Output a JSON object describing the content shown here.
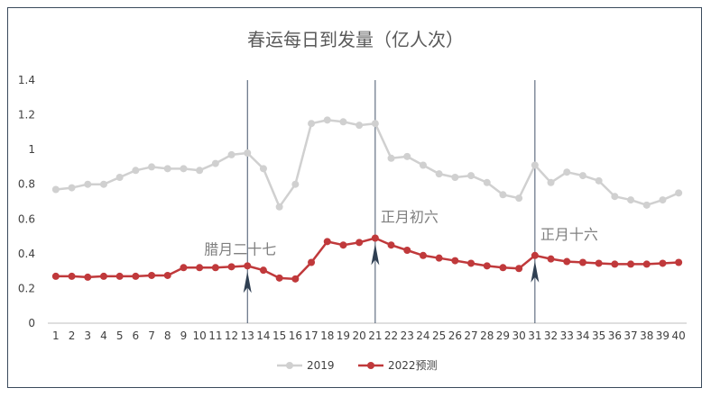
{
  "chart_data": {
    "type": "line",
    "title": "春运每日到发量（亿人次）",
    "xlabel": "",
    "ylabel": "",
    "x": [
      1,
      2,
      3,
      4,
      5,
      6,
      7,
      8,
      9,
      10,
      11,
      12,
      13,
      14,
      15,
      16,
      17,
      18,
      19,
      20,
      21,
      22,
      23,
      24,
      25,
      26,
      27,
      28,
      29,
      30,
      31,
      32,
      33,
      34,
      35,
      36,
      37,
      38,
      39,
      40
    ],
    "ylim": [
      0,
      1.4
    ],
    "yticks": [
      "0",
      "0.2",
      "0.4",
      "0.6",
      "0.8",
      "1",
      "1.2",
      "1.4"
    ],
    "grid": false,
    "legend_position": "bottom",
    "series": [
      {
        "name": "2019",
        "color": "#d0d0d0",
        "values": [
          0.77,
          0.78,
          0.8,
          0.8,
          0.84,
          0.88,
          0.9,
          0.89,
          0.89,
          0.88,
          0.92,
          0.97,
          0.98,
          0.89,
          0.67,
          0.8,
          1.15,
          1.17,
          1.16,
          1.14,
          1.15,
          0.95,
          0.96,
          0.91,
          0.86,
          0.84,
          0.85,
          0.81,
          0.74,
          0.72,
          0.91,
          0.81,
          0.87,
          0.85,
          0.82,
          0.73,
          0.71,
          0.68,
          0.71,
          0.75
        ]
      },
      {
        "name": "2022预测",
        "color": "#c0393b",
        "values": [
          0.27,
          0.27,
          0.265,
          0.27,
          0.27,
          0.27,
          0.275,
          0.275,
          0.32,
          0.32,
          0.32,
          0.325,
          0.33,
          0.305,
          0.26,
          0.255,
          0.35,
          0.47,
          0.45,
          0.465,
          0.49,
          0.45,
          0.42,
          0.39,
          0.375,
          0.36,
          0.345,
          0.33,
          0.32,
          0.315,
          0.39,
          0.37,
          0.355,
          0.35,
          0.345,
          0.34,
          0.34,
          0.34,
          0.345,
          0.35
        ]
      }
    ],
    "annotations": [
      {
        "label": "腊月二十七",
        "x": 13
      },
      {
        "label": "正月初六",
        "x": 21
      },
      {
        "label": "正月十六",
        "x": 31
      }
    ]
  }
}
